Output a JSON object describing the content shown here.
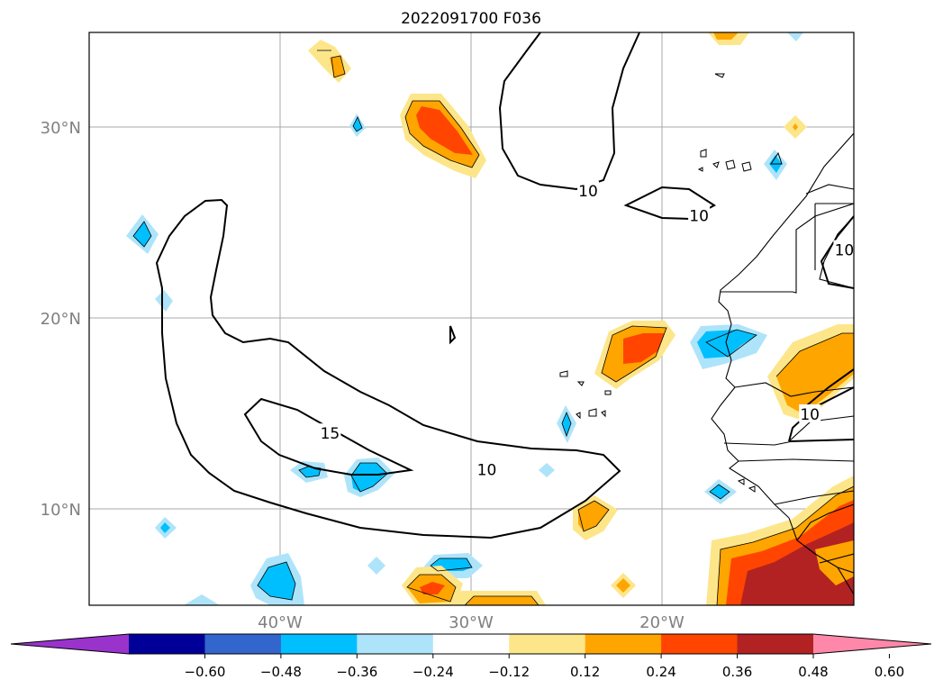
{
  "title": "2022091700 F036",
  "lat_ticks": [
    {
      "label": "30°N",
      "value": 30
    },
    {
      "label": "20°N",
      "value": 20
    },
    {
      "label": "10°N",
      "value": 10
    }
  ],
  "lon_ticks": [
    {
      "label": "40°W",
      "value": -40
    },
    {
      "label": "30°W",
      "value": -30
    },
    {
      "label": "20°W",
      "value": -20
    }
  ],
  "domain": {
    "lon_min": -50,
    "lon_max": -10,
    "lat_min": 5,
    "lat_max": 35
  },
  "colorbar": {
    "extend": "both",
    "colors": [
      "#9933cc",
      "#000099",
      "#3366cc",
      "#00bfff",
      "#aee4fa",
      "#ffffff",
      "#fde68a",
      "#ffa500",
      "#ff4500",
      "#b22222",
      "#ff88aa"
    ],
    "ticks": [
      "−0.60",
      "−0.48",
      "−0.36",
      "−0.24",
      "−0.12",
      "0.12",
      "0.24",
      "0.36",
      "0.48",
      "0.60"
    ]
  },
  "contour_labels": [
    {
      "text": "10",
      "lon": -29.2,
      "lat": 12.1
    },
    {
      "text": "15",
      "lon": -37.4,
      "lat": 14.0
    },
    {
      "text": "10",
      "lon": -23.9,
      "lat": 26.7
    },
    {
      "text": "10",
      "lon": -18.1,
      "lat": 25.4
    },
    {
      "text": "10",
      "lon": -10.5,
      "lat": 23.6
    },
    {
      "text": "10",
      "lon": -12.3,
      "lat": 15.0
    }
  ]
}
